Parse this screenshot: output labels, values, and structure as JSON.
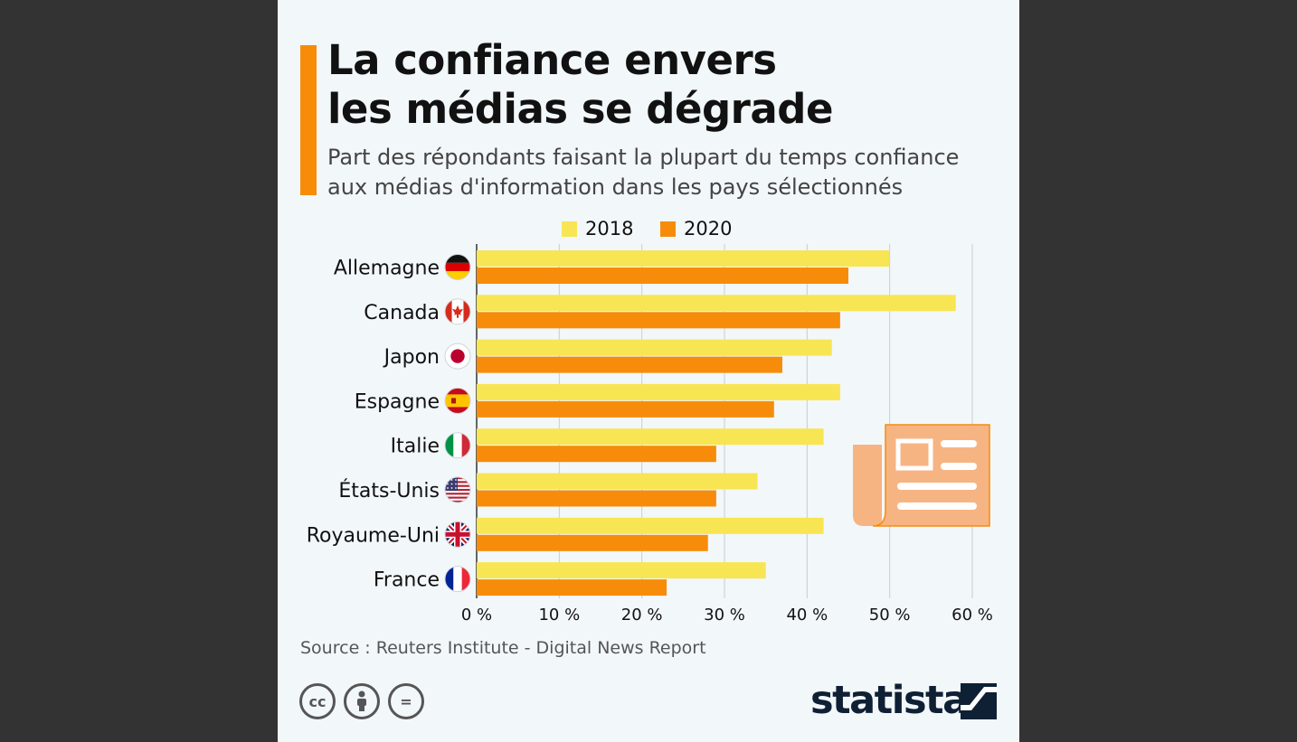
{
  "header": {
    "title_line1": "La confiance envers",
    "title_line2": "les médias se dégrade",
    "subtitle_line1": "Part des répondants faisant la plupart du temps confiance",
    "subtitle_line2": "aux médias d'information dans les pays sélectionnés"
  },
  "colors": {
    "accent": "#f78c0a",
    "series_2018": "#f8e553",
    "series_2020": "#f78c0a",
    "brand": "#0f2035",
    "icon": "#f7b483"
  },
  "chart_data": {
    "type": "bar",
    "orientation": "horizontal",
    "title": "La confiance envers les médias se dégrade",
    "subtitle": "Part des répondants faisant la plupart du temps confiance aux médias d'information dans les pays sélectionnés",
    "categories": [
      "Allemagne",
      "Canada",
      "Japon",
      "Espagne",
      "Italie",
      "États-Unis",
      "Royaume-Uni",
      "France"
    ],
    "flags": [
      "germany-flag-icon",
      "canada-flag-icon",
      "japan-flag-icon",
      "spain-flag-icon",
      "italy-flag-icon",
      "usa-flag-icon",
      "uk-flag-icon",
      "france-flag-icon"
    ],
    "series": [
      {
        "name": "2018",
        "values": [
          50,
          58,
          43,
          44,
          42,
          34,
          42,
          35
        ]
      },
      {
        "name": "2020",
        "values": [
          45,
          44,
          37,
          36,
          29,
          29,
          28,
          23
        ]
      }
    ],
    "xlim": [
      0,
      60
    ],
    "xticks": [
      0,
      10,
      20,
      30,
      40,
      50,
      60
    ],
    "xtick_labels": [
      "0 %",
      "10 %",
      "20 %",
      "30 %",
      "40 %",
      "50 %",
      "60 %"
    ],
    "grid": true,
    "legend": "top-center",
    "xlabel": "",
    "ylabel": ""
  },
  "footer": {
    "source": "Source : Reuters Institute - Digital News Report",
    "license_icons": [
      "cc-icon",
      "by-person-icon",
      "nd-equals-icon"
    ],
    "cc_label": "cc",
    "nd_label": "=",
    "brand": "statista"
  }
}
